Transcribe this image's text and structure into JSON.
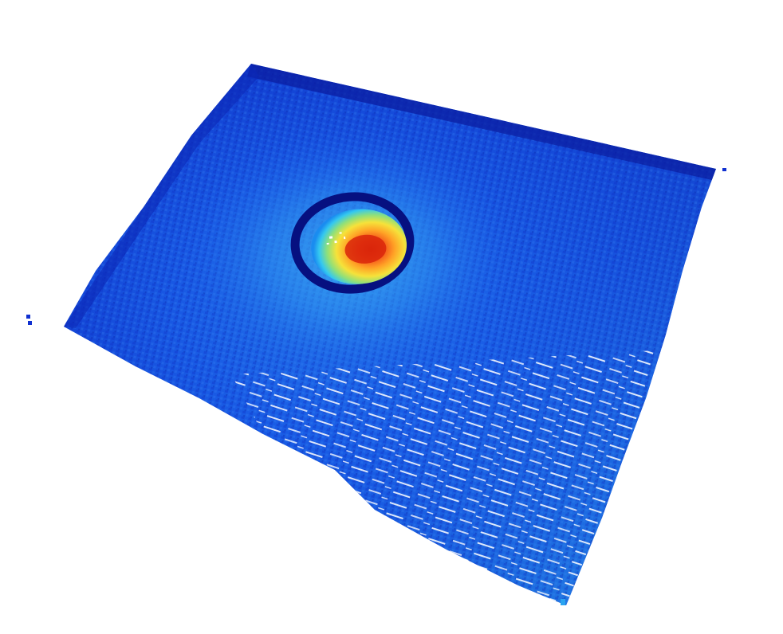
{
  "scene": {
    "colormap": "jet",
    "background": "#ffffff",
    "colors": {
      "deep_blue": "#0a1fb0",
      "blue": "#1240d8",
      "mid_blue": "#1e6ef0",
      "light_blue": "#3aa8f2",
      "cyan": "#5fd6f0",
      "green": "#8fe07a",
      "yellow": "#f6e23a",
      "orange": "#ff8a1e",
      "red": "#e8300a",
      "ring_dark": "#061080"
    }
  }
}
